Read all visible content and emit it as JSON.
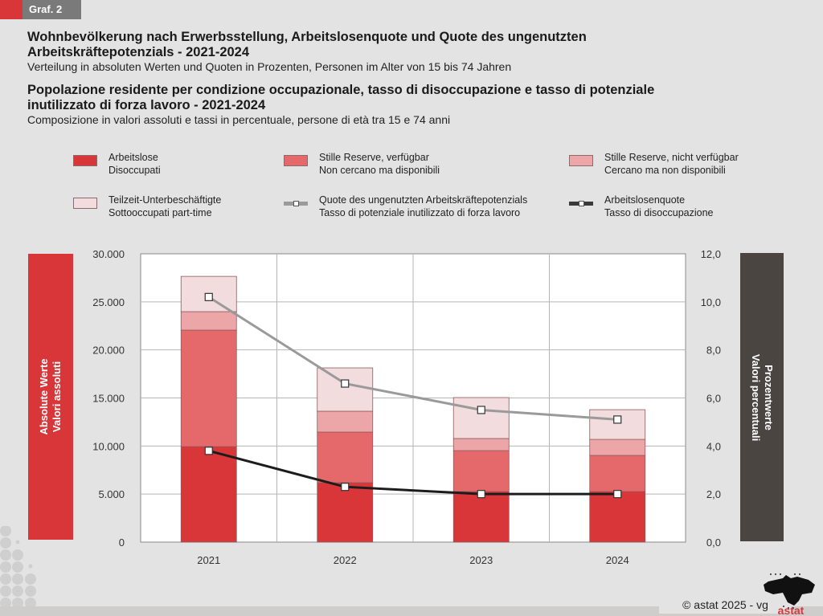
{
  "badge": "Graf. 2",
  "header": {
    "title_de": "Wohnbevölkerung nach Erwerbsstellung, Arbeitslosenquote und Quote des ungenutzten Arbeitskräftepotenzials - 2021-2024",
    "title_de_line1": "Wohnbevölkerung nach Erwerbsstellung, Arbeitslosenquote und Quote des ungenutzten",
    "title_de_line2": "Arbeitskräftepotenzials - 2021-2024",
    "subtitle_de": "Verteilung in absoluten Werten und Quoten in Prozenten, Personen im Alter von 15 bis 74 Jahren",
    "title_it_line1": "Popolazione residente per condizione occupazionale, tasso di disoccupazione e tasso di potenziale",
    "title_it_line2": "inutilizzato di forza lavoro - 2021-2024",
    "subtitle_it": "Composizione in valori assoluti e tassi in percentuale, persone di età tra 15 e 74 anni"
  },
  "legend": [
    {
      "de": "Arbeitslose",
      "it": "Disoccupati",
      "type": "bar",
      "color": "#d9363a"
    },
    {
      "de": "Stille Reserve, verfügbar",
      "it": "Non cercano ma disponibili",
      "type": "bar",
      "color": "#e5696b"
    },
    {
      "de": "Stille Reserve, nicht verfügbar",
      "it": "Cercano ma non disponibili",
      "type": "bar",
      "color": "#eca6a8"
    },
    {
      "de": "Teilzeit-Unterbeschäftigte",
      "it": "Sottooccupati part-time",
      "type": "bar",
      "color": "#f3dcdd"
    },
    {
      "de": "Quote des ungenutzten Arbeitskräftepotenzials",
      "it": "Tasso di potenziale inutilizzato di forza lavoro",
      "type": "line",
      "color": "#9a9a9a"
    },
    {
      "de": "Arbeitslosenquote",
      "it": "Tasso di disoccupazione",
      "type": "line",
      "color": "#1c1c1c"
    }
  ],
  "axis_labels": {
    "left_de": "Absolute Werte",
    "left_it": "Valori assoluti",
    "right_de": "Prozentwerte",
    "right_it": "Valori percentuali"
  },
  "credit": "© astat 2025 - vg",
  "logo_text": "astat",
  "chart_data": {
    "type": "bar",
    "stacked": true,
    "title": "Wohnbevölkerung nach Erwerbsstellung, Arbeitslosenquote und Quote des ungenutzten Arbeitskräftepotenzials - 2021-2024",
    "categories": [
      "2021",
      "2022",
      "2023",
      "2024"
    ],
    "ylim": [
      0,
      30000
    ],
    "y_ticks": [
      0,
      5000,
      10000,
      15000,
      20000,
      25000,
      30000
    ],
    "y_tick_labels": [
      "0",
      "5.000",
      "10.000",
      "15.000",
      "20.000",
      "25.000",
      "30.000"
    ],
    "y2lim": [
      0,
      12
    ],
    "y2_ticks": [
      0,
      2,
      4,
      6,
      8,
      10,
      12
    ],
    "y2_tick_labels": [
      "0,0",
      "2,0",
      "4,0",
      "6,0",
      "8,0",
      "10,0",
      "12,0"
    ],
    "ylabel": "Absolute Werte / Valori assoluti",
    "y2label": "Prozentwerte / Valori percentuali",
    "grid": true,
    "legend_position": "top",
    "series": [
      {
        "name": "Arbeitslose / Disoccupati",
        "type": "bar",
        "axis": "left",
        "color": "#d9363a",
        "values": [
          9940,
          6180,
          5260,
          5260
        ]
      },
      {
        "name": "Stille Reserve, verfügbar / Non cercano ma disponibili",
        "type": "bar",
        "axis": "left",
        "color": "#e5696b",
        "values": [
          12120,
          5270,
          4260,
          3760
        ]
      },
      {
        "name": "Stille Reserve, nicht verfügbar / Cercano ma non disponibili",
        "type": "bar",
        "axis": "left",
        "color": "#eca6a8",
        "values": [
          1920,
          2170,
          1260,
          1670
        ]
      },
      {
        "name": "Teilzeit-Unterbeschäftigte / Sottooccupati part-time",
        "type": "bar",
        "axis": "left",
        "color": "#f3dcdd",
        "values": [
          3670,
          4510,
          4260,
          3090
        ]
      },
      {
        "name": "Quote des ungenutzten Arbeitskräftepotenzials / Tasso di potenziale inutilizzato di forza lavoro",
        "type": "line",
        "axis": "right",
        "color": "#9a9a9a",
        "values": [
          10.2,
          6.6,
          5.5,
          5.1
        ]
      },
      {
        "name": "Arbeitslosenquote / Tasso di disoccupazione",
        "type": "line",
        "axis": "right",
        "color": "#1c1c1c",
        "values": [
          3.8,
          2.3,
          2.0,
          2.0
        ]
      }
    ]
  }
}
